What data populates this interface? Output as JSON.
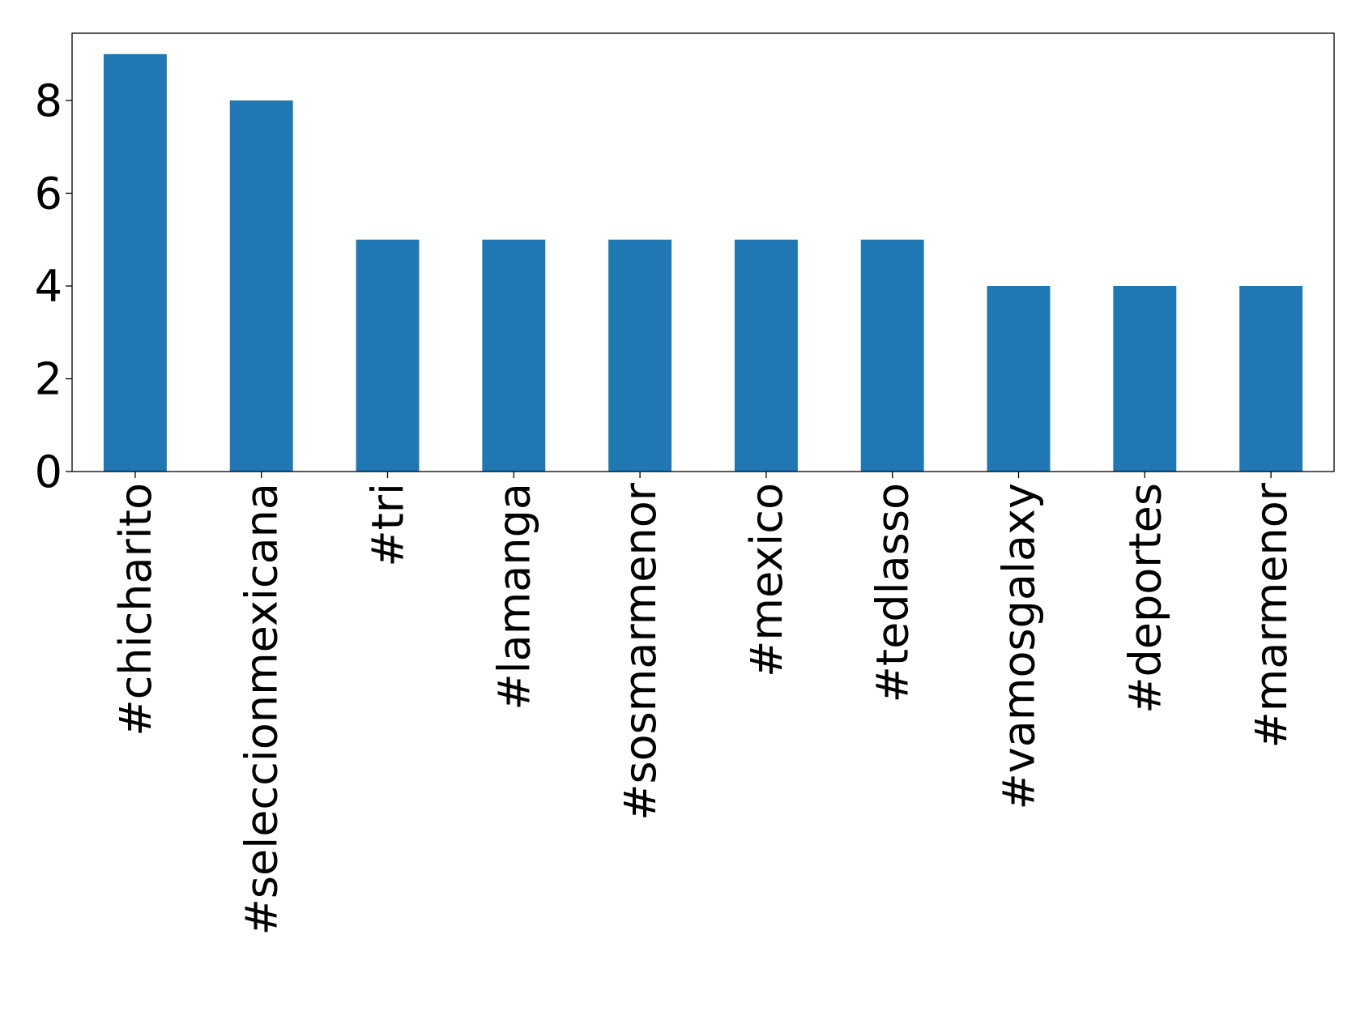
{
  "chart_data": {
    "type": "bar",
    "categories": [
      "#chicharito",
      "#seleccionmexicana",
      "#tri",
      "#lamanga",
      "#sosmarmenor",
      "#mexico",
      "#tedlasso",
      "#vamosgalaxy",
      "#deportes",
      "#marmenor"
    ],
    "values": [
      9,
      8,
      5,
      5,
      5,
      5,
      5,
      4,
      4,
      4
    ],
    "color": "#1f77b4",
    "ylim": [
      0,
      9.45
    ],
    "yticks": [
      0,
      2,
      4,
      6,
      8
    ],
    "grid": false
  }
}
